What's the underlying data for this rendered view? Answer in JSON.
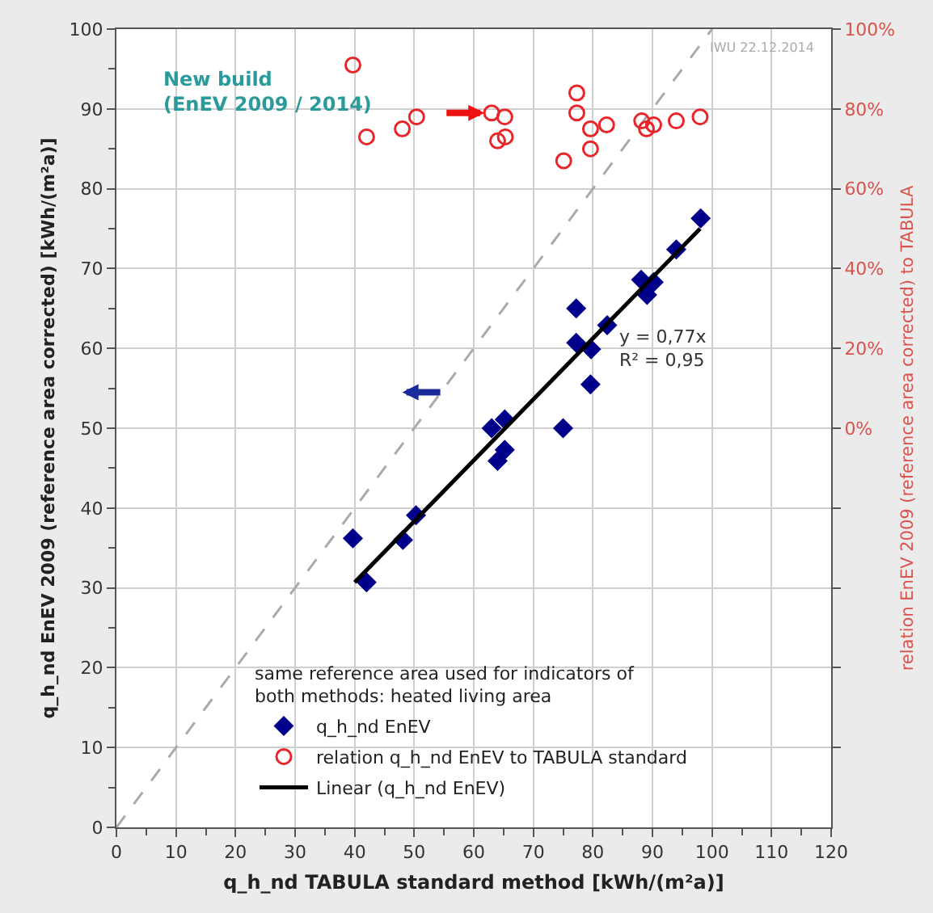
{
  "chart_data": {
    "type": "scatter",
    "xlabel": "q_h_nd TABULA standard method [kWh/(m²a)]",
    "ylabel": "q_h_nd EnEV 2009 (reference area corrected) [kWh/(m²a)]",
    "y2label": "relation EnEV 2009 (reference area corrected) to TABULA",
    "legend_title": "same reference area used for indicators of\nboth methods: heated living area",
    "xlim": [
      0,
      120
    ],
    "xticks": [
      0,
      10,
      20,
      30,
      40,
      50,
      60,
      70,
      80,
      90,
      100,
      110,
      120
    ],
    "ylim": [
      0,
      100
    ],
    "yticks": [
      0,
      10,
      20,
      30,
      40,
      50,
      60,
      70,
      80,
      90,
      100
    ],
    "y2lim": [
      -100,
      100
    ],
    "y2ticks": [
      {
        "value": -80,
        "label": null
      },
      {
        "value": -60,
        "label": null
      },
      {
        "value": -40,
        "label": null
      },
      {
        "value": -20,
        "label": null
      },
      {
        "value": 0,
        "label": "0%"
      },
      {
        "value": 20,
        "label": "20%"
      },
      {
        "value": 40,
        "label": "40%"
      },
      {
        "value": 60,
        "label": "60%"
      },
      {
        "value": 80,
        "label": "80%"
      },
      {
        "value": 100,
        "label": "100%"
      }
    ],
    "grid": true,
    "legend": "bottom",
    "annotations": [
      "New build\n(EnEV 2009 / 2014)",
      "IWU 22.12.2014",
      "y = 0,77x\nR² = 0,95"
    ],
    "series": [
      {
        "name": "q_h_nd EnEV",
        "marker": "diamond",
        "color": "#00008b",
        "x": [
          98.1,
          94.0,
          88.1,
          90.2,
          89.1,
          77.2,
          82.4,
          77.2,
          79.7,
          79.6,
          75.0,
          63.0,
          65.2,
          65.2,
          64.0,
          50.3,
          48.1,
          39.7,
          42.0
        ],
        "values": [
          76.3,
          72.4,
          68.6,
          68.3,
          66.7,
          65.0,
          62.9,
          60.7,
          59.9,
          55.5,
          50.0,
          50.0,
          51.1,
          47.3,
          45.9,
          39.1,
          36.0,
          36.2,
          30.7
        ]
      },
      {
        "name": "relation q_h_nd EnEV to TABULA standard",
        "marker": "circle",
        "axis": "y2",
        "color": "#e8262a",
        "x": [
          39.7,
          42.0,
          48.0,
          50.4,
          63.0,
          65.2,
          64.0,
          65.3,
          77.3,
          77.3,
          79.6,
          82.3,
          75.1,
          79.6,
          88.2,
          89.0,
          90.2,
          94.0,
          98.0
        ],
        "values": [
          91,
          73,
          75,
          78,
          79,
          78,
          72,
          73,
          84,
          79,
          75,
          76,
          67,
          70,
          77,
          75,
          76,
          77,
          78
        ]
      },
      {
        "name": "Linear (q_h_nd EnEV)",
        "type": "line",
        "marker": "none",
        "line_style": "solid",
        "color": "#000000",
        "x": [
          40,
          98
        ],
        "values": [
          30.7,
          75.0
        ]
      },
      {
        "type": "line",
        "marker": "none",
        "line_style": "dashed",
        "color": "#aaaaaa",
        "x": [
          0,
          100
        ],
        "values": [
          0,
          100
        ]
      }
    ]
  }
}
